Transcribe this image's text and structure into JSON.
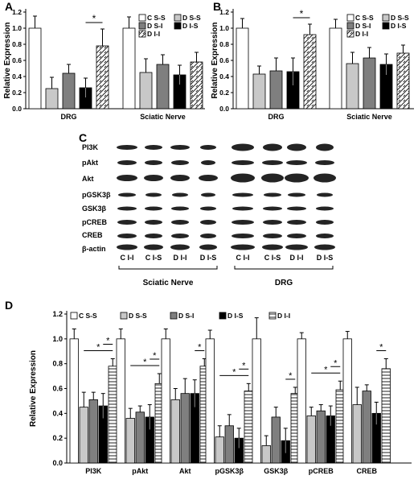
{
  "panels": {
    "A": {
      "letter": "A",
      "ylabel": "Relative Expression",
      "yticks": [
        "0.0",
        "0.2",
        "0.4",
        "0.6",
        "0.8",
        "1.0",
        "1.2"
      ],
      "legend": [
        "C S-S",
        "D S-S",
        "D S-I",
        "D I-S",
        "D I-I"
      ],
      "significance": "*"
    },
    "B": {
      "letter": "B",
      "ylabel": "Relative Expression",
      "yticks": [
        "0.0",
        "0.2",
        "0.4",
        "0.6",
        "0.8",
        "1.0",
        "1.2"
      ],
      "legend": [
        "C S-S",
        "D S-S",
        "D S-I",
        "D I-S",
        "D I-I"
      ],
      "significance": "*"
    },
    "C": {
      "letter": "C",
      "proteins": [
        "PI3K",
        "pAkt",
        "Akt",
        "pGSK3β",
        "GSK3β",
        "pCREB",
        "CREB",
        "β-actin"
      ],
      "lane_labels_sciatic": [
        "C I-I",
        "C I-S",
        "D I-I",
        "D I-S"
      ],
      "lane_labels_drg": [
        "C I-I",
        "C I-S",
        "D I-I",
        "D I-S"
      ],
      "group_sciatic": "Sciatic Nerve",
      "group_drg": "DRG"
    },
    "D": {
      "letter": "D",
      "ylabel": "Relative Expression",
      "yticks": [
        "0.0",
        "0.2",
        "0.4",
        "0.6",
        "0.8",
        "1.0",
        "1.2"
      ],
      "legend": [
        "C S-S",
        "D S-S",
        "D S-I",
        "D I-S",
        "D I-I"
      ],
      "significance": "*"
    }
  },
  "chart_data": [
    {
      "panel": "A",
      "type": "bar",
      "ylabel": "Relative Expression",
      "ylim": [
        0,
        1.2
      ],
      "categories": [
        "DRG",
        "Sciatic Nerve"
      ],
      "series": [
        {
          "name": "C S-S",
          "values": [
            1.0,
            1.0
          ],
          "errors": [
            0.15,
            0.14
          ]
        },
        {
          "name": "D S-S",
          "values": [
            0.25,
            0.45
          ],
          "errors": [
            0.14,
            0.17
          ]
        },
        {
          "name": "D S-I",
          "values": [
            0.44,
            0.55
          ],
          "errors": [
            0.11,
            0.12
          ]
        },
        {
          "name": "D I-S",
          "values": [
            0.26,
            0.42
          ],
          "errors": [
            0.12,
            0.12
          ]
        },
        {
          "name": "D I-I",
          "values": [
            0.78,
            0.58
          ],
          "errors": [
            0.21,
            0.12
          ]
        }
      ],
      "annotations": [
        {
          "text": "*",
          "group": "DRG",
          "from": "D I-S",
          "to": "D I-I"
        }
      ],
      "grid": false,
      "legend_position": "top-right"
    },
    {
      "panel": "B",
      "type": "bar",
      "ylabel": "Relative Expression",
      "ylim": [
        0,
        1.2
      ],
      "categories": [
        "DRG",
        "Sciatic Nerve"
      ],
      "series": [
        {
          "name": "C S-S",
          "values": [
            1.0,
            1.0
          ],
          "errors": [
            0.12,
            0.11
          ]
        },
        {
          "name": "D S-S",
          "values": [
            0.43,
            0.56
          ],
          "errors": [
            0.1,
            0.14
          ]
        },
        {
          "name": "D S-I",
          "values": [
            0.47,
            0.63
          ],
          "errors": [
            0.16,
            0.13
          ]
        },
        {
          "name": "D I-S",
          "values": [
            0.46,
            0.55
          ],
          "errors": [
            0.17,
            0.13
          ]
        },
        {
          "name": "D I-I",
          "values": [
            0.92,
            0.69
          ],
          "errors": [
            0.13,
            0.1
          ]
        }
      ],
      "annotations": [
        {
          "text": "*",
          "group": "DRG",
          "from": "D I-S",
          "to": "D I-I"
        }
      ],
      "grid": false,
      "legend_position": "top-right"
    },
    {
      "panel": "D",
      "type": "bar",
      "ylabel": "Relative Expression",
      "ylim": [
        0,
        1.2
      ],
      "categories": [
        "PI3K",
        "pAkt",
        "Akt",
        "pGSK3β",
        "GSK3β",
        "pCREB",
        "CREB"
      ],
      "series": [
        {
          "name": "C S-S",
          "values": [
            1.0,
            1.0,
            1.0,
            1.0,
            1.0,
            1.0,
            1.0
          ],
          "errors": [
            0.08,
            0.08,
            0.08,
            0.07,
            0.17,
            0.05,
            0.06
          ]
        },
        {
          "name": "D S-S",
          "values": [
            0.45,
            0.36,
            0.51,
            0.21,
            0.14,
            0.38,
            0.47
          ],
          "errors": [
            0.12,
            0.08,
            0.09,
            0.09,
            0.08,
            0.07,
            0.14
          ]
        },
        {
          "name": "D S-I",
          "values": [
            0.51,
            0.41,
            0.56,
            0.3,
            0.37,
            0.42,
            0.58
          ],
          "errors": [
            0.06,
            0.05,
            0.12,
            0.09,
            0.08,
            0.05,
            0.05
          ]
        },
        {
          "name": "D I-S",
          "values": [
            0.46,
            0.37,
            0.56,
            0.2,
            0.18,
            0.38,
            0.4
          ],
          "errors": [
            0.1,
            0.1,
            0.11,
            0.08,
            0.1,
            0.08,
            0.09
          ]
        },
        {
          "name": "D I-I",
          "values": [
            0.78,
            0.64,
            0.78,
            0.58,
            0.56,
            0.59,
            0.76
          ],
          "errors": [
            0.06,
            0.08,
            0.06,
            0.06,
            0.05,
            0.07,
            0.08
          ]
        }
      ],
      "annotations": [
        {
          "text": "*",
          "group": "PI3K",
          "from": "D S-S",
          "to": "D I-I"
        },
        {
          "text": "*",
          "group": "PI3K",
          "from": "D I-S",
          "to": "D I-I"
        },
        {
          "text": "*",
          "group": "pAkt",
          "from": "D S-S",
          "to": "D I-I"
        },
        {
          "text": "*",
          "group": "pAkt",
          "from": "D I-S",
          "to": "D I-I"
        },
        {
          "text": "*",
          "group": "Akt",
          "from": "D I-S",
          "to": "D I-I"
        },
        {
          "text": "*",
          "group": "pGSK3β",
          "from": "D S-S",
          "to": "D I-I"
        },
        {
          "text": "*",
          "group": "pGSK3β",
          "from": "D I-S",
          "to": "D I-I"
        },
        {
          "text": "*",
          "group": "GSK3β",
          "from": "D I-S",
          "to": "D I-I"
        },
        {
          "text": "*",
          "group": "pCREB",
          "from": "D S-S",
          "to": "D I-I"
        },
        {
          "text": "*",
          "group": "pCREB",
          "from": "D I-S",
          "to": "D I-I"
        },
        {
          "text": "*",
          "group": "CREB",
          "from": "D I-S",
          "to": "D I-I"
        }
      ],
      "grid": false,
      "legend_position": "top"
    }
  ]
}
